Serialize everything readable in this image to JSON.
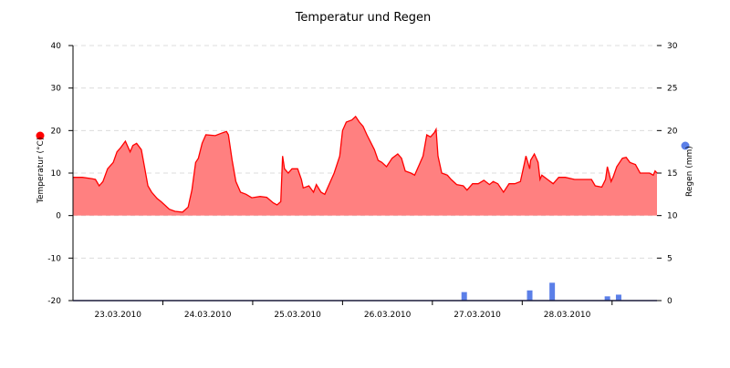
{
  "chart_data": {
    "type": "area+bar",
    "title": "Temperatur und Regen",
    "x_range": [
      "23.03 00:00",
      "29.03 12:00"
    ],
    "x_tick_labels": [
      "23.03.2010",
      "24.03.2010",
      "25.03.2010",
      "26.03.2010",
      "27.03.2010",
      "28.03.2010"
    ],
    "y_left": {
      "label": "Temperatur (°C)",
      "ylim": [
        -20,
        40
      ],
      "ticks": [
        -20,
        -10,
        0,
        10,
        20,
        30,
        40
      ]
    },
    "y_right": {
      "label": "Regen (mm)",
      "ylim": [
        0,
        30
      ],
      "ticks": [
        0,
        5,
        10,
        15,
        20,
        25,
        30
      ]
    },
    "grid": true,
    "colors": {
      "temperature_line": "#ff0000",
      "temperature_fill": "#ff8080",
      "rain": "#5b7fe8"
    },
    "series": [
      {
        "name": "Temperatur (°C)",
        "axis": "left",
        "type": "area",
        "points": [
          [
            "23.03 00:00",
            9
          ],
          [
            "23.03 02:30",
            9
          ],
          [
            "23.03 05:00",
            8.7
          ],
          [
            "23.03 06:00",
            8.5
          ],
          [
            "23.03 07:00",
            7
          ],
          [
            "23.03 08:00",
            8
          ],
          [
            "23.03 09:15",
            11
          ],
          [
            "23.03 10:45",
            12.5
          ],
          [
            "23.03 11:45",
            15
          ],
          [
            "23.03 12:45",
            16
          ],
          [
            "23.03 14:00",
            17.5
          ],
          [
            "23.03 15:15",
            15
          ],
          [
            "23.03 16:00",
            16.5
          ],
          [
            "23.03 17:00",
            17
          ],
          [
            "23.03 18:15",
            15.5
          ],
          [
            "23.03 19:00",
            12
          ],
          [
            "23.03 20:00",
            7
          ],
          [
            "23.03 21:00",
            5.5
          ],
          [
            "23.03 22:30",
            4
          ],
          [
            "23.03 23:30",
            3.3
          ],
          [
            "24.03 00:30",
            2.5
          ],
          [
            "24.03 01:45",
            1.5
          ],
          [
            "24.03 03:15",
            1
          ],
          [
            "24.03 05:15",
            0.8
          ],
          [
            "24.03 06:45",
            2
          ],
          [
            "24.03 07:45",
            6
          ],
          [
            "24.03 08:45",
            12.5
          ],
          [
            "24.03 09:30",
            13.5
          ],
          [
            "24.03 10:30",
            17
          ],
          [
            "24.03 11:30",
            19
          ],
          [
            "24.03 14:00",
            18.8
          ],
          [
            "24.03 16:00",
            19.5
          ],
          [
            "24.03 17:00",
            19.8
          ],
          [
            "24.03 17:30",
            19
          ],
          [
            "24.03 18:30",
            13
          ],
          [
            "24.03 19:30",
            8
          ],
          [
            "24.03 20:45",
            5.5
          ],
          [
            "24.03 22:15",
            5
          ],
          [
            "24.03 23:45",
            4.2
          ],
          [
            "25.03 02:00",
            4.5
          ],
          [
            "25.03 03:45",
            4.3
          ],
          [
            "25.03 05:30",
            3
          ],
          [
            "25.03 06:30",
            2.5
          ],
          [
            "25.03 07:30",
            3.3
          ],
          [
            "25.03 08:00",
            14
          ],
          [
            "25.03 08:30",
            11
          ],
          [
            "25.03 09:30",
            10
          ],
          [
            "25.03 10:30",
            11
          ],
          [
            "25.03 12:00",
            11
          ],
          [
            "25.03 13:00",
            8.5
          ],
          [
            "25.03 13:30",
            6.5
          ],
          [
            "25.03 15:00",
            7
          ],
          [
            "25.03 16:15",
            5.5
          ],
          [
            "25.03 17:00",
            7.3
          ],
          [
            "25.03 18:15",
            5.5
          ],
          [
            "25.03 19:15",
            5
          ],
          [
            "25.03 20:15",
            7
          ],
          [
            "25.03 21:45",
            10
          ],
          [
            "25.03 23:15",
            14
          ],
          [
            "26.03 00:00",
            20
          ],
          [
            "26.03 01:00",
            22
          ],
          [
            "26.03 02:30",
            22.5
          ],
          [
            "26.03 03:30",
            23.3
          ],
          [
            "26.03 04:30",
            22
          ],
          [
            "26.03 05:30",
            21
          ],
          [
            "26.03 06:30",
            19
          ],
          [
            "26.03 08:30",
            15.5
          ],
          [
            "26.03 09:30",
            13
          ],
          [
            "26.03 10:30",
            12.5
          ],
          [
            "26.03 11:45",
            11.5
          ],
          [
            "26.03 13:15",
            13.5
          ],
          [
            "26.03 14:45",
            14.5
          ],
          [
            "26.03 15:45",
            13.5
          ],
          [
            "26.03 16:45",
            10.5
          ],
          [
            "26.03 18:15",
            10
          ],
          [
            "26.03 19:15",
            9.5
          ],
          [
            "26.03 20:30",
            12
          ],
          [
            "26.03 21:30",
            14
          ],
          [
            "26.03 22:30",
            19
          ],
          [
            "26.03 23:30",
            18.5
          ],
          [
            "27.03 00:30",
            19.5
          ],
          [
            "27.03 01:00",
            20.3
          ],
          [
            "27.03 01:30",
            14
          ],
          [
            "27.03 02:30",
            10
          ],
          [
            "27.03 04:00",
            9.5
          ],
          [
            "27.03 05:00",
            8.5
          ],
          [
            "27.03 06:30",
            7.3
          ],
          [
            "27.03 08:15",
            7
          ],
          [
            "27.03 09:15",
            6
          ],
          [
            "27.03 10:45",
            7.5
          ],
          [
            "27.03 12:15",
            7.5
          ],
          [
            "27.03 13:45",
            8.3
          ],
          [
            "27.03 15:15",
            7.3
          ],
          [
            "27.03 16:15",
            8
          ],
          [
            "27.03 17:30",
            7.5
          ],
          [
            "27.03 19:00",
            5.5
          ],
          [
            "27.03 20:30",
            7.5
          ],
          [
            "27.03 22:00",
            7.5
          ],
          [
            "27.03 23:30",
            8
          ],
          [
            "28.03 00:30",
            12
          ],
          [
            "28.03 01:00",
            14
          ],
          [
            "28.03 02:00",
            11
          ],
          [
            "28.03 02:15",
            13
          ],
          [
            "28.03 03:15",
            14.5
          ],
          [
            "28.03 04:15",
            12.5
          ],
          [
            "28.03 04:45",
            8.5
          ],
          [
            "28.03 05:15",
            9.5
          ],
          [
            "28.03 06:45",
            8.5
          ],
          [
            "28.03 08:15",
            7.5
          ],
          [
            "28.03 09:45",
            9
          ],
          [
            "28.03 11:30",
            9
          ],
          [
            "28.03 14:00",
            8.5
          ],
          [
            "28.03 16:30",
            8.5
          ],
          [
            "28.03 18:30",
            8.5
          ],
          [
            "28.03 19:30",
            7
          ],
          [
            "28.03 21:15",
            6.7
          ],
          [
            "28.03 22:15",
            8.5
          ],
          [
            "28.03 22:45",
            11.5
          ],
          [
            "28.03 23:45",
            8
          ],
          [
            "29.03 00:15",
            9
          ],
          [
            "29.03 01:15",
            11.5
          ],
          [
            "29.03 02:45",
            13.5
          ],
          [
            "29.03 03:45",
            13.7
          ],
          [
            "29.03 04:45",
            12.5
          ],
          [
            "29.03 06:15",
            12
          ],
          [
            "29.03 07:30",
            10
          ],
          [
            "29.03 10:00",
            10
          ],
          [
            "29.03 11:00",
            9.5
          ],
          [
            "29.03 11:30",
            10.5
          ],
          [
            "29.03 12:00",
            10
          ]
        ]
      },
      {
        "name": "Regen (mm)",
        "axis": "right",
        "type": "bar",
        "points": [
          [
            "27.03 08:30",
            1.0
          ],
          [
            "28.03 02:00",
            1.2
          ],
          [
            "28.03 08:00",
            2.1
          ],
          [
            "28.03 22:45",
            0.5
          ],
          [
            "29.03 01:45",
            0.7
          ]
        ]
      }
    ]
  }
}
